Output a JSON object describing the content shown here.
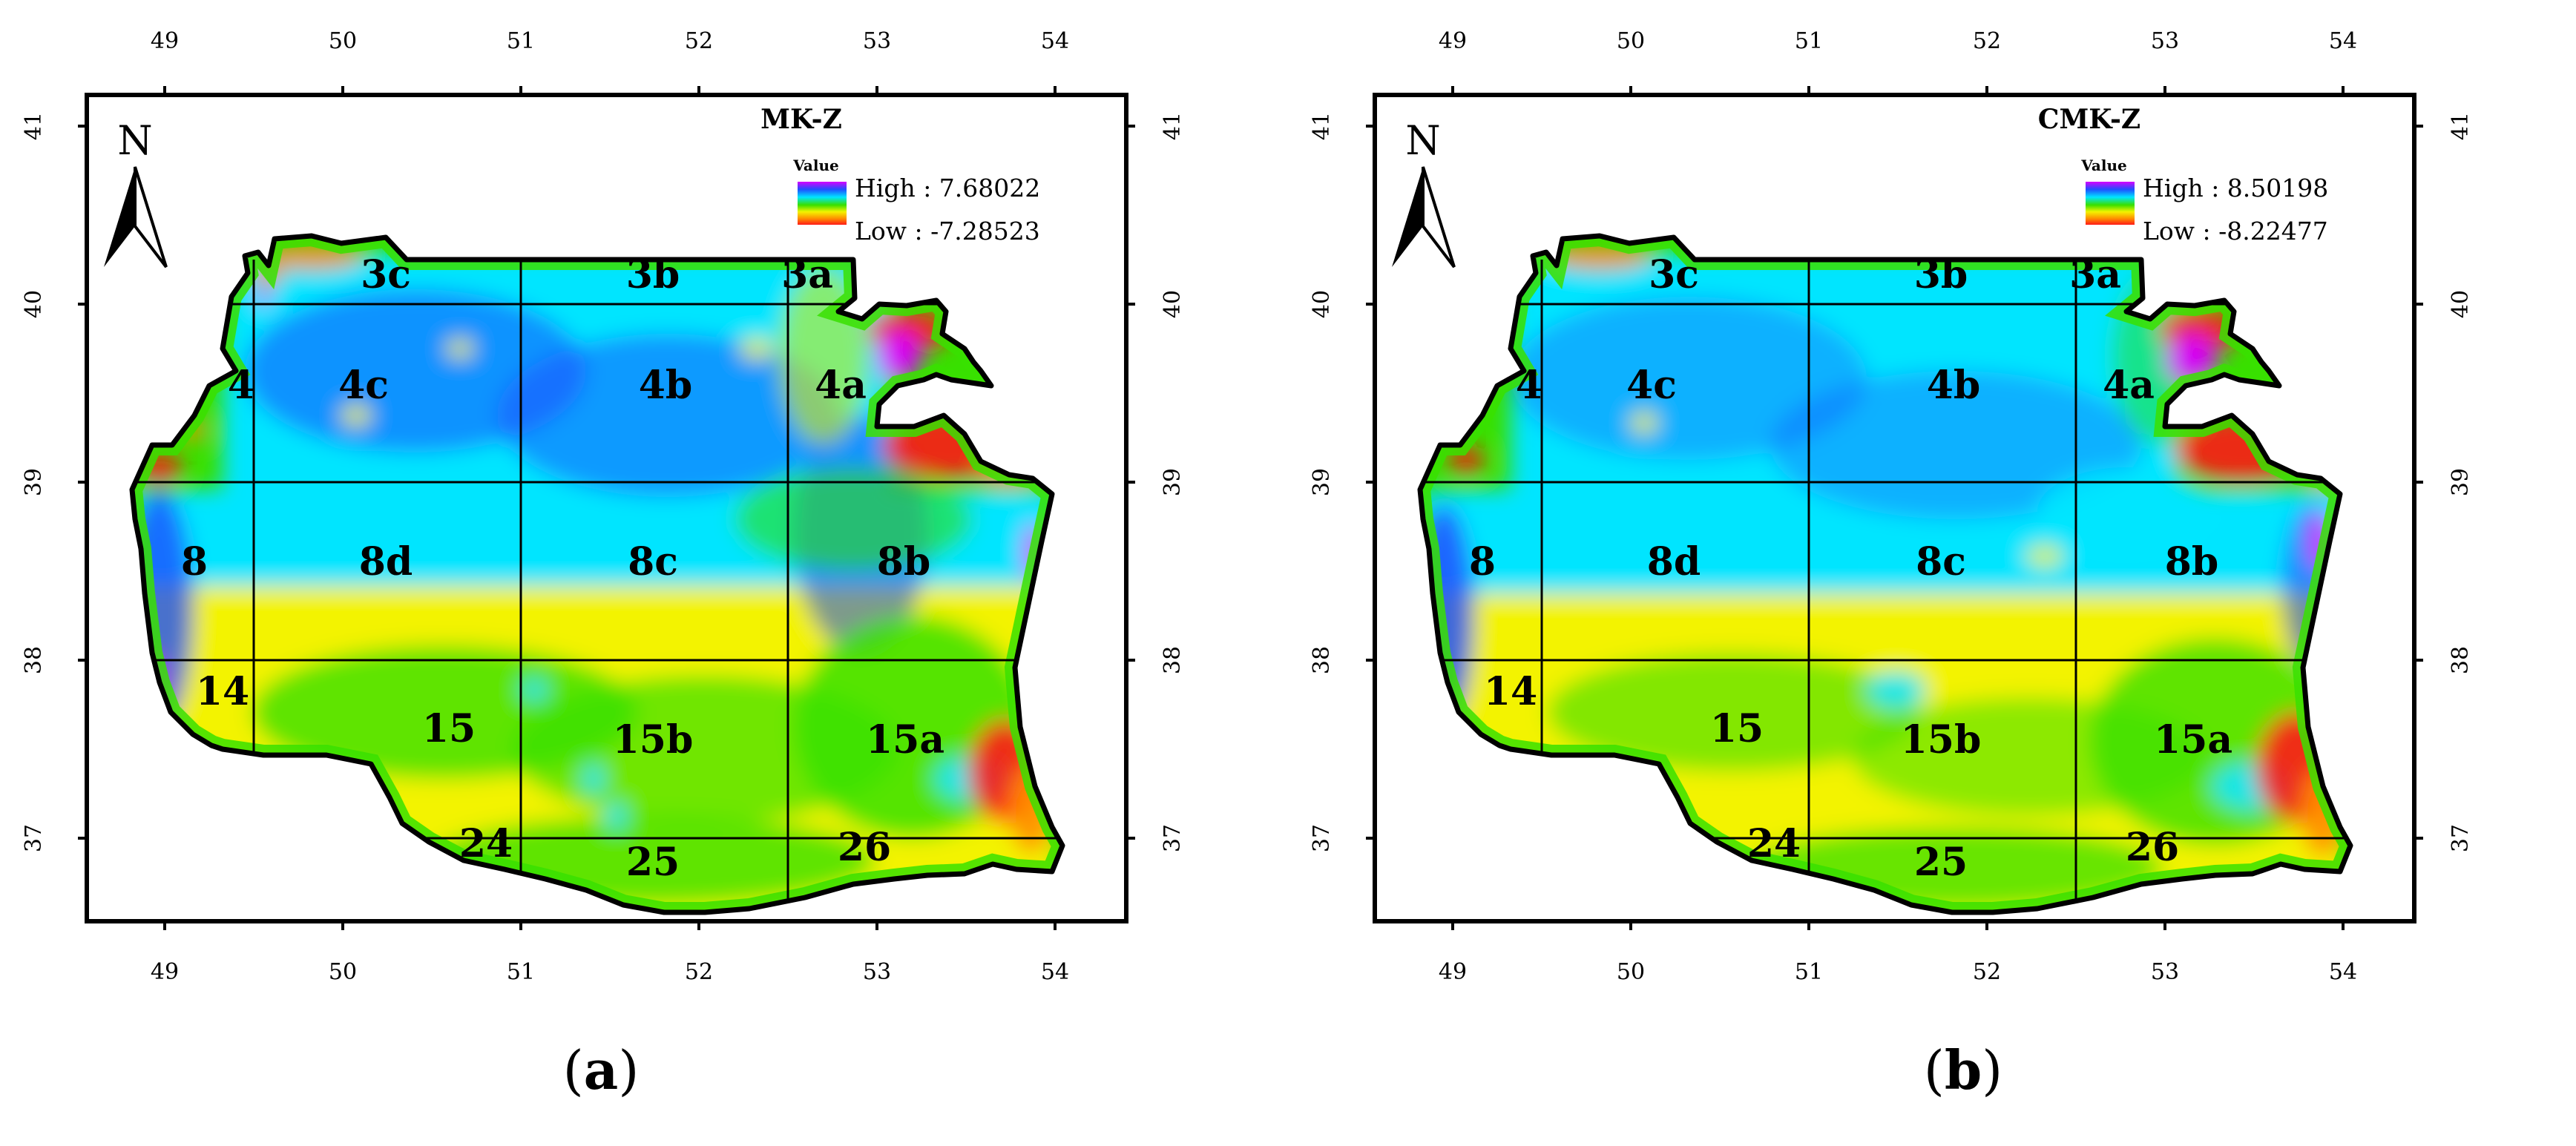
{
  "figure": {
    "panels": [
      {
        "id": "a",
        "caption_open": "(",
        "caption_letter": "a",
        "caption_close": ")",
        "title": "MK-Z",
        "legend": {
          "heading": "Value",
          "high": "High : 7.68022",
          "low": "Low : -7.28523"
        },
        "north": "N",
        "zone_labels": [
          "3c",
          "3b",
          "3a",
          "4",
          "4c",
          "4b",
          "4a",
          "8",
          "8d",
          "8c",
          "8b",
          "14",
          "15",
          "15b",
          "15a",
          "24",
          "25",
          "26"
        ]
      },
      {
        "id": "b",
        "caption_open": "(",
        "caption_letter": "b",
        "caption_close": ")",
        "title": "CMK-Z",
        "legend": {
          "heading": "Value",
          "high": "High : 8.50198",
          "low": "Low : -8.22477"
        },
        "north": "N",
        "zone_labels": [
          "3c",
          "3b",
          "3a",
          "4",
          "4c",
          "4b",
          "4a",
          "8",
          "8d",
          "8c",
          "8b",
          "14",
          "15",
          "15b",
          "15a",
          "24",
          "25",
          "26"
        ]
      }
    ],
    "axes": {
      "x_ticks": [
        "49",
        "50",
        "51",
        "52",
        "53",
        "54"
      ],
      "y_ticks": [
        "41",
        "40",
        "39",
        "38",
        "37"
      ]
    },
    "colors": {
      "high": "#d800ff",
      "blue": "#1e50ff",
      "cyan": "#00e5ff",
      "green": "#38e000",
      "yellow": "#f3f300",
      "orange": "#ff8c00",
      "low": "#ff1a1a"
    }
  }
}
